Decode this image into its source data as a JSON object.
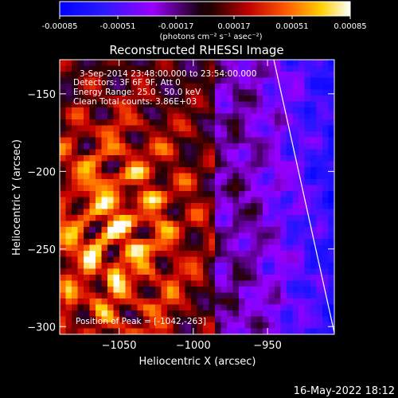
{
  "chart_data": {
    "type": "heatmap",
    "title": "Reconstructed RHESSI Image",
    "xlabel": "Heliocentric X (arcsec)",
    "ylabel": "Heliocentric Y (arcsec)",
    "xlim": [
      -1090,
      -905
    ],
    "ylim": [
      -305,
      -128
    ],
    "x_ticks": [
      "-1050",
      "-1000",
      "-950"
    ],
    "y_ticks": [
      "-150",
      "-200",
      "-250",
      "-300"
    ],
    "colorbar": {
      "ticks": [
        "-0.00085",
        "-0.00051",
        "-0.00017",
        "0.00017",
        "0.00051",
        "0.00085"
      ],
      "range": [
        -0.00085,
        0.00085
      ],
      "unit_label": "(photons cm⁻² s⁻¹ asec⁻²)"
    },
    "annotations": {
      "time_range": "3-Sep-2014 23:48:00.000 to 23:54:00.000",
      "detectors": "Detectors: 3F 6F 9F, Att 0",
      "energy_range": "Energy Range: 25.0 - 50.0 keV",
      "method": "Clean     Total counts: 3.86E+03",
      "peak": "Position of Peak = [-1042,-263]"
    },
    "limb_line": true,
    "timestamp": "16-May-2022 18:12"
  }
}
